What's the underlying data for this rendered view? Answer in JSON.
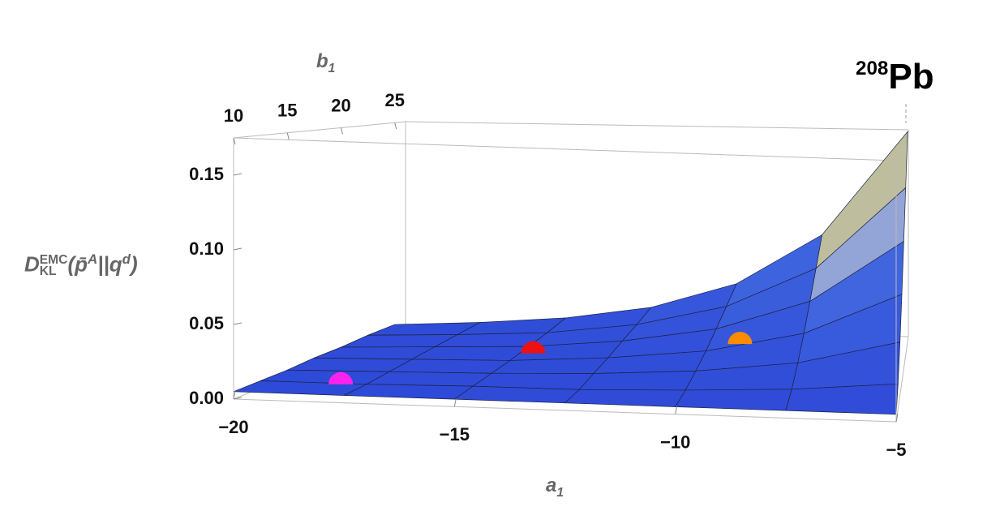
{
  "chart_data": {
    "type": "surface3d",
    "annotation": {
      "sup": "208",
      "text": "Pb"
    },
    "xlabel": {
      "base": "a",
      "sub": "1"
    },
    "ylabel": {
      "base": "b",
      "sub": "1"
    },
    "zlabel": {
      "base": "D",
      "sup": "EMC",
      "sub": "KL",
      "open": "(",
      "p": "p̄",
      "p_sup": "A",
      "sep": "||",
      "q": "q",
      "q_sup": "d",
      "close": ")"
    },
    "x": [
      -20,
      -17.5,
      -15,
      -12.5,
      -10,
      -7.5,
      -5
    ],
    "y": [
      10,
      12.5,
      15,
      17.5,
      20,
      22.5,
      25
    ],
    "z": [
      [
        0.005,
        0.005,
        0.005,
        0.005,
        0.005,
        0.005,
        0.005
      ],
      [
        0.005,
        0.005,
        0.006,
        0.006,
        0.008,
        0.011,
        0.017
      ],
      [
        0.005,
        0.006,
        0.007,
        0.009,
        0.013,
        0.021,
        0.038
      ],
      [
        0.006,
        0.007,
        0.008,
        0.012,
        0.019,
        0.034,
        0.065
      ],
      [
        0.006,
        0.008,
        0.01,
        0.016,
        0.027,
        0.05,
        0.098
      ],
      [
        0.007,
        0.009,
        0.012,
        0.02,
        0.036,
        0.068,
        0.134
      ],
      [
        0.007,
        0.01,
        0.015,
        0.025,
        0.046,
        0.088,
        0.175
      ]
    ],
    "xlim": [
      -20,
      -5
    ],
    "ylim": [
      10,
      26
    ],
    "zlim": [
      0,
      0.175
    ],
    "xticks": [
      {
        "value": -20,
        "label": "−20"
      },
      {
        "value": -15,
        "label": "−15"
      },
      {
        "value": -10,
        "label": "−10"
      },
      {
        "value": -5,
        "label": "−5"
      }
    ],
    "yticks": [
      10,
      15,
      20,
      25
    ],
    "zticks": [
      {
        "value": 0,
        "label": "0.00"
      },
      {
        "value": 0.05,
        "label": "0.05"
      },
      {
        "value": 0.1,
        "label": "0.10"
      },
      {
        "value": 0.15,
        "label": "0.15"
      }
    ],
    "points": [
      {
        "color": "#ff22ee",
        "x": -18,
        "y": 12,
        "z": 0.006
      },
      {
        "color": "#ee1111",
        "x": -14.5,
        "y": 18,
        "z": 0.012
      },
      {
        "color": "#ff8c00",
        "x": -9,
        "y": 16,
        "z": 0.03
      }
    ]
  }
}
